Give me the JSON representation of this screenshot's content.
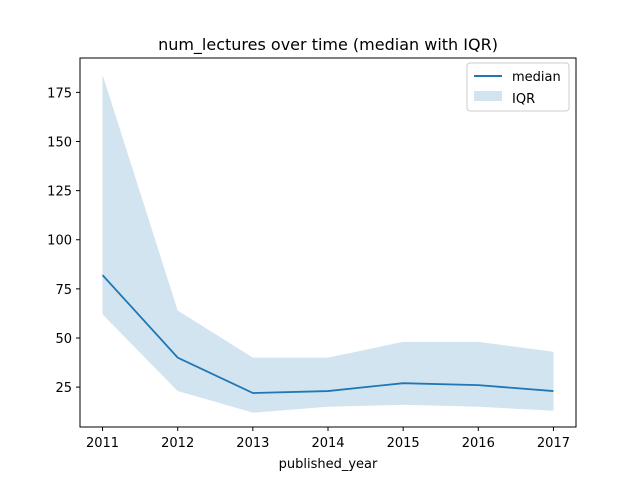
{
  "chart_data": {
    "type": "line",
    "title": "num_lectures over time (median with IQR)",
    "xlabel": "published_year",
    "ylabel": "",
    "x": [
      2011,
      2012,
      2013,
      2014,
      2015,
      2016,
      2017
    ],
    "xlim": [
      2010.7,
      2017.3
    ],
    "ylim": [
      4.7,
      192.5
    ],
    "yticks": [
      25,
      50,
      75,
      100,
      125,
      150,
      175
    ],
    "series": [
      {
        "name": "median",
        "values": [
          82,
          40,
          22,
          23,
          27,
          26,
          23
        ]
      }
    ],
    "band": {
      "name": "IQR",
      "lower": [
        62,
        23,
        12,
        15,
        16,
        15,
        13
      ],
      "upper": [
        184,
        64,
        40,
        40,
        48,
        48,
        43
      ]
    },
    "legend_position": "top-right",
    "grid": false,
    "colors": {
      "line": "#1f77b4",
      "band": "#1f77b4"
    }
  }
}
